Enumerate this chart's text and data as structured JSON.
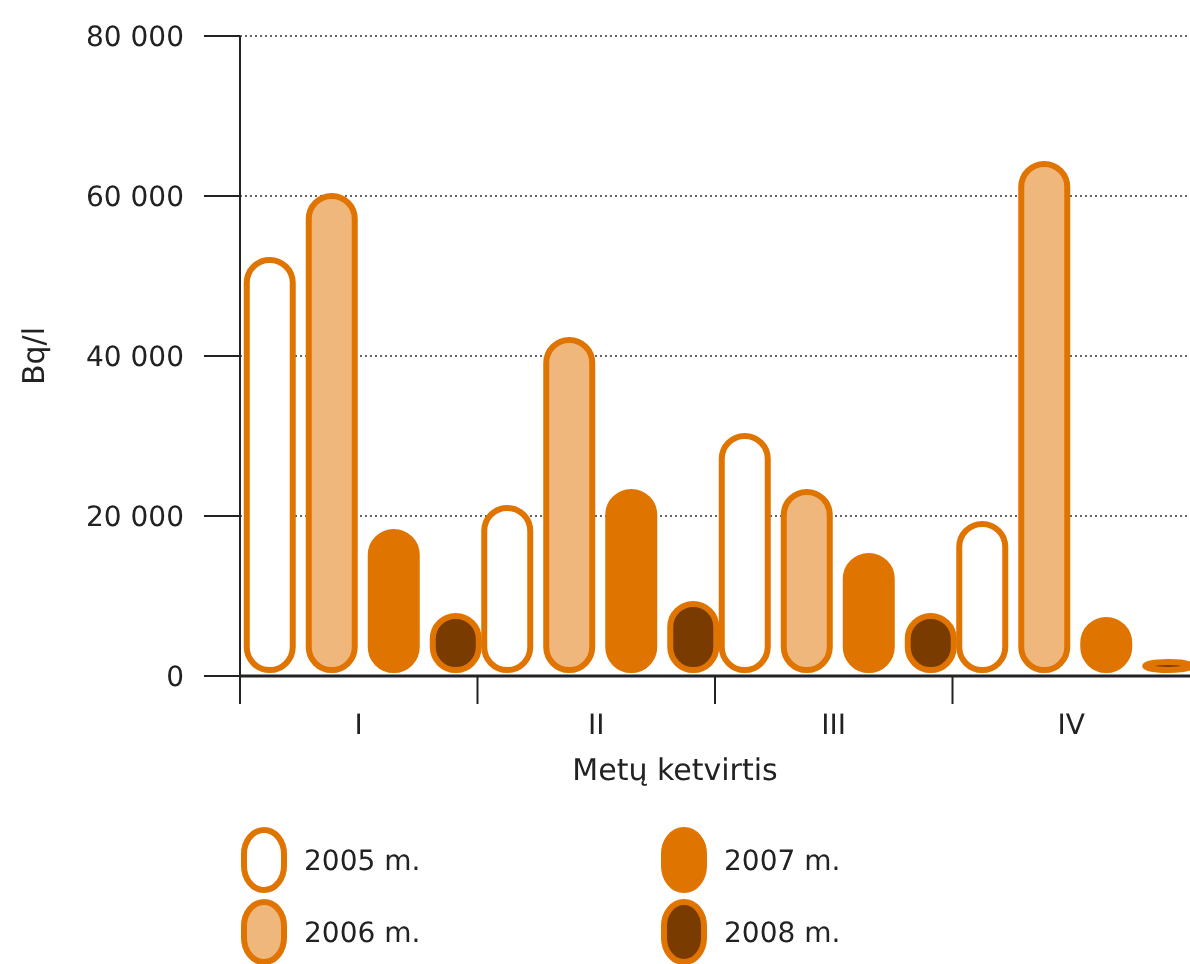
{
  "chart_data": {
    "type": "bar",
    "xlabel": "Metų ketvirtis",
    "ylabel": "Bq/l",
    "categories": [
      "I",
      "II",
      "III",
      "IV"
    ],
    "series": [
      {
        "name": "2005 m.",
        "color": "#ffffff",
        "values": [
          52000,
          21000,
          30000,
          19000
        ]
      },
      {
        "name": "2006 m.",
        "color": "#efb77c",
        "values": [
          60000,
          42000,
          23000,
          64000
        ]
      },
      {
        "name": "2007 m.",
        "color": "#e07400",
        "values": [
          18000,
          23000,
          15000,
          7000
        ]
      },
      {
        "name": "2008 m.",
        "color": "#7a3b00",
        "values": [
          7500,
          9000,
          7500,
          1500
        ]
      }
    ],
    "ylim": [
      0,
      80000
    ],
    "yticks": [
      {
        "value": 0,
        "label": "0"
      },
      {
        "value": 20000,
        "label": "20 000"
      },
      {
        "value": 40000,
        "label": "40 000"
      },
      {
        "value": 60000,
        "label": "60 000"
      },
      {
        "value": 80000,
        "label": "80 000"
      }
    ],
    "grid": "y",
    "legend": "bottom"
  }
}
